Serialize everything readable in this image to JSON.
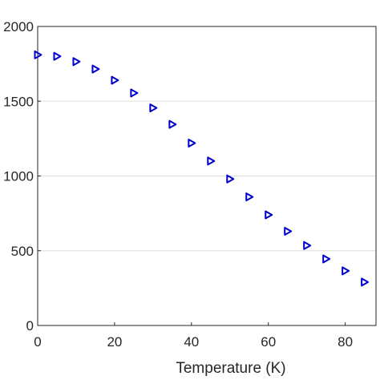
{
  "chart_data": {
    "type": "scatter",
    "title": "",
    "xlabel": "Temperature (K)",
    "ylabel": "",
    "xlim": [
      0,
      88
    ],
    "ylim": [
      0,
      2000
    ],
    "x_ticks": [
      0,
      20,
      40,
      60,
      80
    ],
    "y_ticks": [
      0,
      500,
      1000,
      1500,
      2000
    ],
    "grid": "horizontal",
    "marker": "triangle-right",
    "marker_color": "#0000cc",
    "series": [
      {
        "x": [
          0,
          5,
          10,
          15,
          20,
          25,
          30,
          35,
          40,
          45,
          50,
          55,
          60,
          65,
          70,
          75,
          80,
          85
        ],
        "y": [
          1810,
          1800,
          1765,
          1715,
          1640,
          1555,
          1455,
          1345,
          1220,
          1100,
          980,
          860,
          740,
          630,
          535,
          445,
          365,
          290
        ]
      }
    ]
  },
  "colors": {
    "axis": "#262626",
    "grid": "#dfdfdf",
    "marker": "#0000cc"
  }
}
